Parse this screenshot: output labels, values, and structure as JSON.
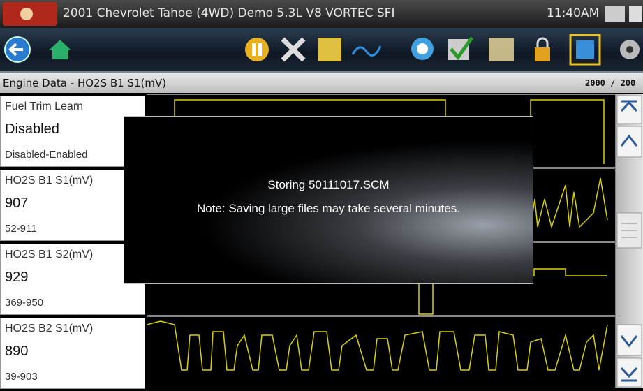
{
  "header": {
    "title": "2001 Chevrolet Tahoe (4WD) Demo 5.3L V8 VORTEC SFI",
    "time": "11:40AM"
  },
  "subheader": {
    "title": "Engine Data - HO2S B1 S1(mV)",
    "counter": "2000 / 200"
  },
  "parameters": [
    {
      "name": "Fuel Trim Learn",
      "value": "Disabled",
      "range": "Disabled-Enabled"
    },
    {
      "name": "HO2S B1 S1(mV)",
      "value": "907",
      "range": "52-911"
    },
    {
      "name": "HO2S B1 S2(mV)",
      "value": "929",
      "range": "369-950"
    },
    {
      "name": "HO2S B2 S1(mV)",
      "value": "890",
      "range": "39-903"
    }
  ],
  "dialog": {
    "title": "Storing 50111017.SCM",
    "message": "Note: Saving large files may take several minutes."
  }
}
